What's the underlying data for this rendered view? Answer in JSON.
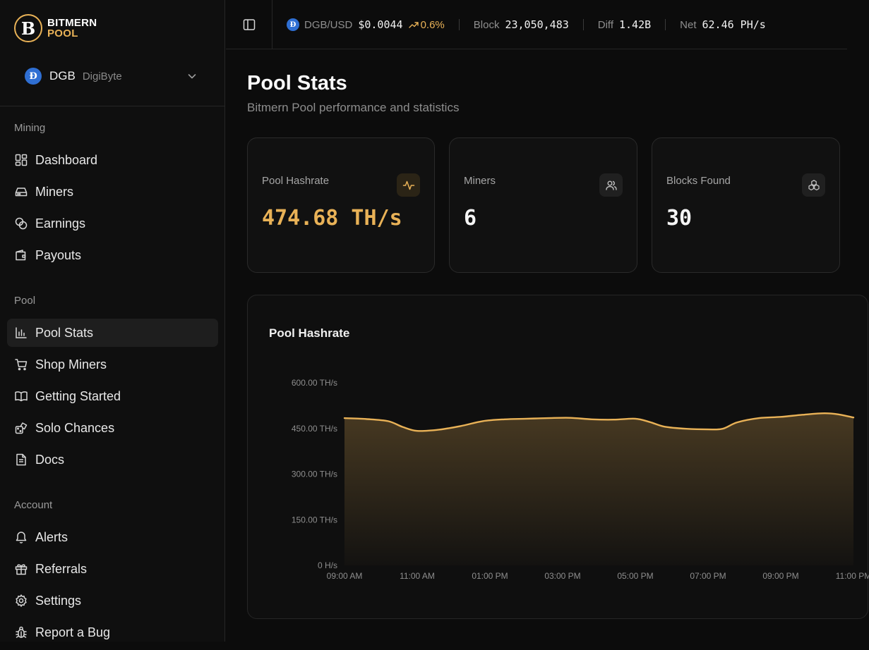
{
  "brand": {
    "line1": "BITMERN",
    "line2": "POOL",
    "mark": "B"
  },
  "coin_selector": {
    "symbol": "DGB",
    "name": "DigiByte",
    "coin_glyph": "Đ"
  },
  "nav": {
    "sections": [
      {
        "heading": "Mining",
        "items": [
          {
            "label": "Dashboard",
            "icon": "dashboard-icon"
          },
          {
            "label": "Miners",
            "icon": "miners-icon"
          },
          {
            "label": "Earnings",
            "icon": "earnings-icon"
          },
          {
            "label": "Payouts",
            "icon": "wallet-icon"
          }
        ]
      },
      {
        "heading": "Pool",
        "items": [
          {
            "label": "Pool Stats",
            "icon": "bar-chart-icon",
            "active": true
          },
          {
            "label": "Shop Miners",
            "icon": "cart-icon"
          },
          {
            "label": "Getting Started",
            "icon": "book-icon"
          },
          {
            "label": "Solo Chances",
            "icon": "dice-icon"
          },
          {
            "label": "Docs",
            "icon": "document-icon"
          }
        ]
      },
      {
        "heading": "Account",
        "items": [
          {
            "label": "Alerts",
            "icon": "bell-icon"
          },
          {
            "label": "Referrals",
            "icon": "gift-icon"
          },
          {
            "label": "Settings",
            "icon": "gear-icon"
          },
          {
            "label": "Report a Bug",
            "icon": "bug-icon"
          }
        ]
      }
    ]
  },
  "ticker": {
    "pair": "DGB/USD",
    "price": "$0.0044",
    "change": "0.6%",
    "block_label": "Block",
    "block_value": "23,050,483",
    "diff_label": "Diff",
    "diff_value": "1.42B",
    "net_label": "Net",
    "net_value": "62.46 PH/s"
  },
  "page": {
    "title": "Pool Stats",
    "subtitle": "Bitmern Pool performance and statistics"
  },
  "cards": [
    {
      "label": "Pool Hashrate",
      "value": "474.68 TH/s",
      "icon": "activity-icon",
      "highlight": true
    },
    {
      "label": "Miners",
      "value": "6",
      "icon": "users-icon",
      "highlight": false
    },
    {
      "label": "Blocks Found",
      "value": "30",
      "icon": "blocks-icon",
      "highlight": false
    }
  ],
  "colors": {
    "accent": "#e9b257",
    "background": "#0c0c0c",
    "coin_blue": "#2f6fd3"
  },
  "chart_data": {
    "type": "area",
    "title": "Pool Hashrate",
    "y_ticks": [
      "600.00 TH/s",
      "450.00 TH/s",
      "300.00 TH/s",
      "150.00 TH/s",
      "0 H/s"
    ],
    "ylim": [
      0,
      600
    ],
    "x_ticks": [
      "09:00 AM",
      "11:00 AM",
      "01:00 PM",
      "03:00 PM",
      "05:00 PM",
      "07:00 PM",
      "09:00 PM",
      "11:00 PM"
    ],
    "x_hours": [
      0,
      2,
      4,
      6,
      8,
      10,
      12,
      14
    ],
    "series": [
      {
        "x": [
          0,
          0.6,
          1.2,
          1.6,
          2.0,
          2.6,
          3.2,
          3.8,
          4.4,
          5.0,
          5.6,
          6.2,
          6.8,
          7.4,
          8.0,
          8.4,
          8.8,
          9.4,
          10.0,
          10.4,
          10.8,
          11.4,
          12.0,
          12.6,
          13.2,
          13.6,
          14.0
        ],
        "values": [
          484,
          481,
          474,
          455,
          442,
          446,
          458,
          474,
          480,
          482,
          484,
          485,
          480,
          479,
          482,
          471,
          456,
          449,
          447,
          449,
          470,
          484,
          488,
          495,
          500,
          496,
          486
        ]
      }
    ]
  }
}
